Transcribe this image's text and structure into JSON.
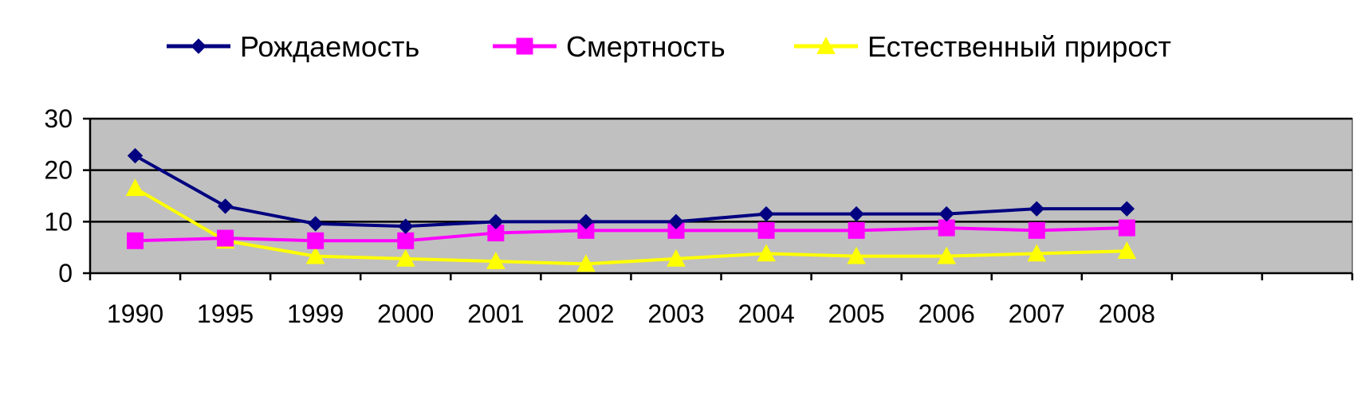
{
  "chart_data": {
    "type": "line",
    "categories": [
      "1990",
      "1995",
      "1999",
      "2000",
      "2001",
      "2002",
      "2003",
      "2004",
      "2005",
      "2006",
      "2007",
      "2008"
    ],
    "ylim": [
      0,
      30
    ],
    "yticks": [
      "0",
      "10",
      "20",
      "30"
    ],
    "grid": "horizontal",
    "legend": "top",
    "plot_background": "#c0c0c0",
    "series": [
      {
        "name": "Рождаемость",
        "color": "#000080",
        "marker": "diamond",
        "values": [
          22.8,
          13.0,
          9.6,
          9.1,
          10.0,
          10.0,
          10.0,
          11.5,
          11.5,
          11.5,
          12.5,
          12.5
        ]
      },
      {
        "name": "Смертность",
        "color": "#ff00ff",
        "marker": "square",
        "values": [
          6.3,
          6.8,
          6.3,
          6.3,
          7.8,
          8.3,
          8.3,
          8.3,
          8.3,
          8.8,
          8.3,
          8.8
        ]
      },
      {
        "name": "Естественный прирост",
        "color": "#ffff00",
        "marker": "triangle",
        "values": [
          16.5,
          6.3,
          3.3,
          2.8,
          2.3,
          1.8,
          2.8,
          3.8,
          3.3,
          3.3,
          3.8,
          4.3
        ]
      }
    ]
  }
}
